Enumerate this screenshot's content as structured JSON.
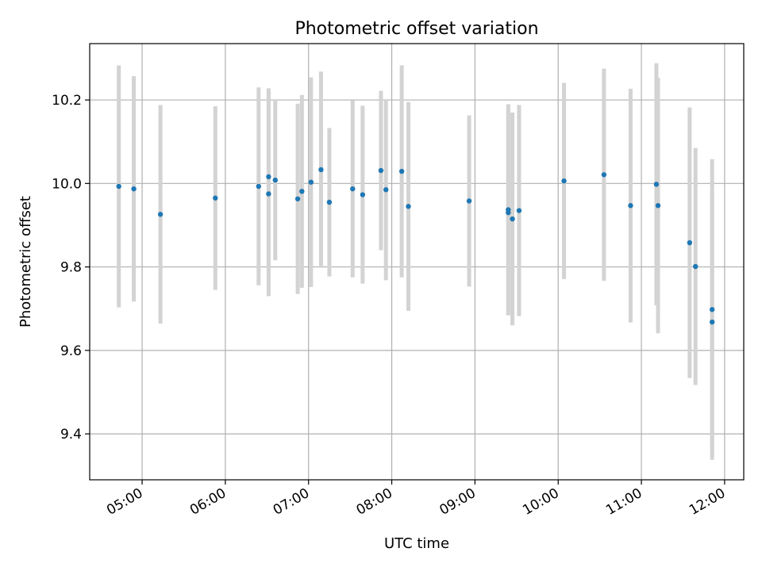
{
  "chart_data": {
    "type": "scatter",
    "title": "Photometric offset variation",
    "xlabel": "UTC time",
    "ylabel": "Photometric offset",
    "x_unit": "hours UTC",
    "xlim": [
      4.37,
      12.23
    ],
    "ylim": [
      9.29,
      10.335
    ],
    "grid": true,
    "x_ticks": [
      {
        "value": 5,
        "label": "05:00"
      },
      {
        "value": 6,
        "label": "06:00"
      },
      {
        "value": 7,
        "label": "07:00"
      },
      {
        "value": 8,
        "label": "08:00"
      },
      {
        "value": 9,
        "label": "09:00"
      },
      {
        "value": 10,
        "label": "10:00"
      },
      {
        "value": 11,
        "label": "11:00"
      },
      {
        "value": 12,
        "label": "12:00"
      }
    ],
    "y_ticks": [
      {
        "value": 9.4,
        "label": "9.4"
      },
      {
        "value": 9.6,
        "label": "9.6"
      },
      {
        "value": 9.8,
        "label": "9.8"
      },
      {
        "value": 10.0,
        "label": "10.0"
      },
      {
        "value": 10.2,
        "label": "10.2"
      }
    ],
    "colors": {
      "marker": "#1f77b4",
      "errorbar": "#d3d3d3",
      "grid": "#b0b0b0"
    },
    "points": [
      {
        "x": 4.72,
        "y": 9.993,
        "err": 0.29
      },
      {
        "x": 4.9,
        "y": 9.987,
        "err": 0.27
      },
      {
        "x": 5.22,
        "y": 9.926,
        "err": 0.262
      },
      {
        "x": 5.88,
        "y": 9.965,
        "err": 0.22
      },
      {
        "x": 6.4,
        "y": 9.993,
        "err": 0.237
      },
      {
        "x": 6.52,
        "y": 10.016,
        "err": 0.212
      },
      {
        "x": 6.52,
        "y": 9.975,
        "err": 0.245
      },
      {
        "x": 6.6,
        "y": 10.008,
        "err": 0.192
      },
      {
        "x": 6.87,
        "y": 9.963,
        "err": 0.228
      },
      {
        "x": 6.92,
        "y": 9.981,
        "err": 0.231
      },
      {
        "x": 7.03,
        "y": 10.003,
        "err": 0.251
      },
      {
        "x": 7.15,
        "y": 10.033,
        "err": 0.235
      },
      {
        "x": 7.25,
        "y": 9.955,
        "err": 0.178
      },
      {
        "x": 7.53,
        "y": 9.987,
        "err": 0.212
      },
      {
        "x": 7.65,
        "y": 9.973,
        "err": 0.213
      },
      {
        "x": 7.87,
        "y": 10.031,
        "err": 0.191
      },
      {
        "x": 7.93,
        "y": 9.985,
        "err": 0.217
      },
      {
        "x": 8.12,
        "y": 10.029,
        "err": 0.254
      },
      {
        "x": 8.2,
        "y": 9.945,
        "err": 0.25
      },
      {
        "x": 8.93,
        "y": 9.958,
        "err": 0.205
      },
      {
        "x": 9.4,
        "y": 9.937,
        "err": 0.253
      },
      {
        "x": 9.4,
        "y": 9.93,
        "err": 0.243
      },
      {
        "x": 9.45,
        "y": 9.915,
        "err": 0.255
      },
      {
        "x": 9.53,
        "y": 9.935,
        "err": 0.253
      },
      {
        "x": 10.07,
        "y": 10.006,
        "err": 0.235
      },
      {
        "x": 10.55,
        "y": 10.021,
        "err": 0.254
      },
      {
        "x": 10.87,
        "y": 9.947,
        "err": 0.28
      },
      {
        "x": 11.18,
        "y": 9.998,
        "err": 0.29
      },
      {
        "x": 11.2,
        "y": 9.947,
        "err": 0.306
      },
      {
        "x": 11.58,
        "y": 9.858,
        "err": 0.324
      },
      {
        "x": 11.65,
        "y": 9.801,
        "err": 0.284
      },
      {
        "x": 11.85,
        "y": 9.698,
        "err": 0.36
      },
      {
        "x": 11.85,
        "y": 9.668,
        "err": 0.31
      }
    ]
  }
}
